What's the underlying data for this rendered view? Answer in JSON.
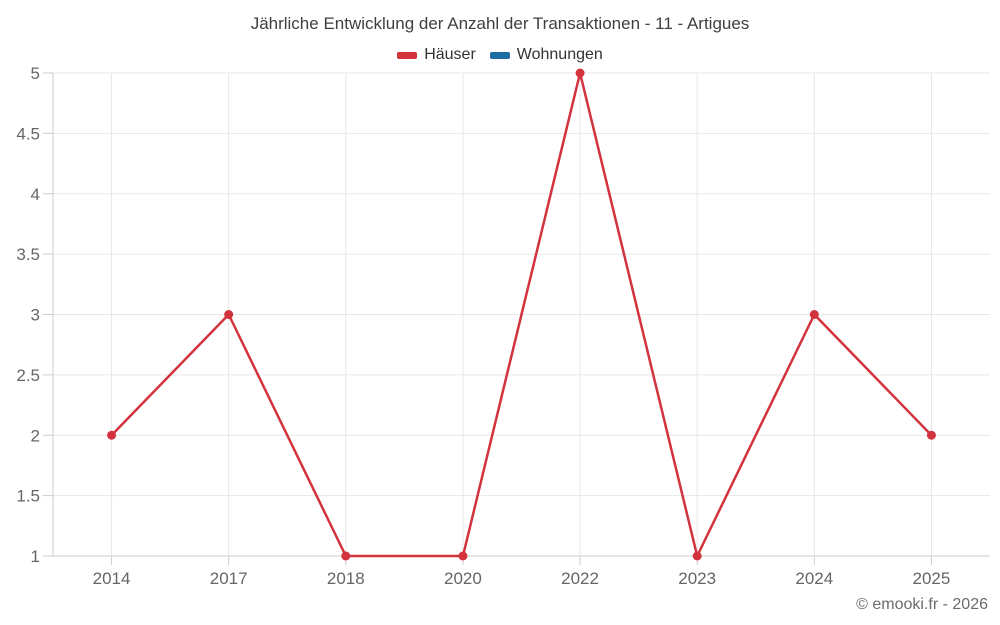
{
  "title": "Jährliche Entwicklung der Anzahl der Transaktionen - 11 - Artigues",
  "footer": "© emooki.fr - 2026",
  "chart_data": {
    "type": "line",
    "title": "Jährliche Entwicklung der Anzahl der Transaktionen - 11 - Artigues",
    "categories": [
      "2014",
      "2017",
      "2018",
      "2020",
      "2022",
      "2023",
      "2024",
      "2025"
    ],
    "series": [
      {
        "name": "Häuser",
        "color": "#d2333d",
        "values": [
          2,
          3,
          1,
          1,
          5,
          1,
          3,
          2
        ]
      },
      {
        "name": "Wohnungen",
        "color": "#1c6ea4",
        "values": []
      }
    ],
    "xlabel": "",
    "ylabel": "",
    "ylim": [
      1,
      5
    ],
    "ytick_step": 0.5,
    "ytick_labels": [
      "1",
      "1.5",
      "2",
      "2.5",
      "3",
      "3.5",
      "4",
      "4.5",
      "5"
    ],
    "grid": true,
    "legend_position": "top"
  },
  "colors": {
    "grid": "#e7e7e7",
    "axis": "#cccccc",
    "tick": "#cccccc",
    "axis_label": "#666666",
    "title": "#3f3f3f",
    "marker": "#d2333d"
  }
}
